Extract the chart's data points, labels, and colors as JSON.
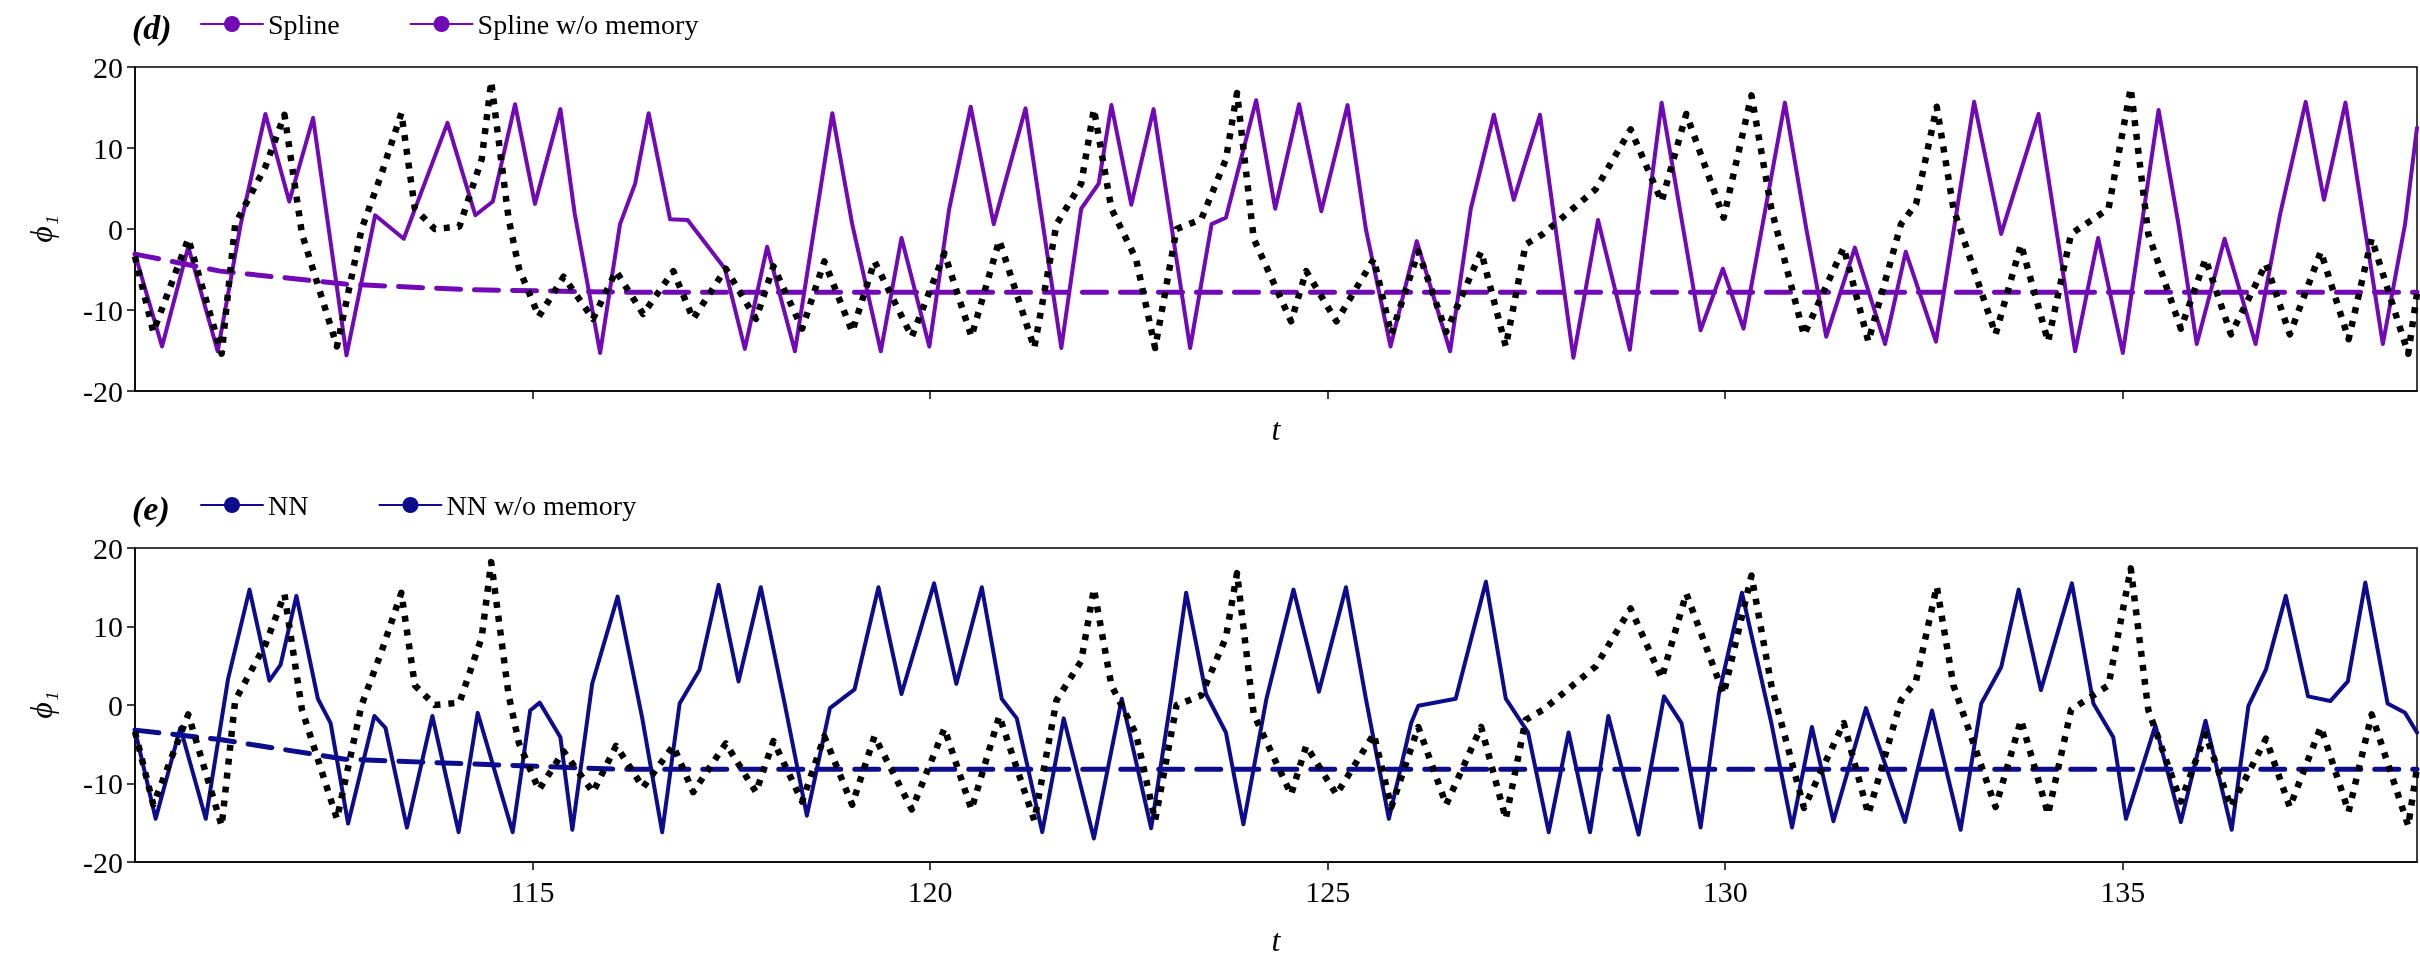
{
  "chart_data": [
    {
      "type": "line",
      "title": "(d)",
      "xlabel": "t",
      "ylabel": "ϕ₁",
      "xlim": [
        110,
        138.7
      ],
      "ylim": [
        -20,
        20
      ],
      "xticks": [
        115,
        120,
        125,
        130,
        135
      ],
      "yticks": [
        -20,
        -10,
        0,
        10,
        20
      ],
      "legend": "top left",
      "tick_labels": "y",
      "series": [
        {
          "name": "Spline",
          "color": "#7209b7",
          "line_style": "solid",
          "x": [
            110,
            110.34,
            110.67,
            111.04,
            111.33,
            111.64,
            111.94,
            112.24,
            112.66,
            113.02,
            113.38,
            113.93,
            114.28,
            114.5,
            114.78,
            115.03,
            115.35,
            115.53,
            115.85,
            116.1,
            116.29,
            116.46,
            116.73,
            116.95,
            117.42,
            117.67,
            117.95,
            118.3,
            118.77,
            119.02,
            119.38,
            119.64,
            119.99,
            120.24,
            120.51,
            120.8,
            121.2,
            121.65,
            121.9,
            122.12,
            122.28,
            122.53,
            122.81,
            123.27,
            123.54,
            123.72,
            124.1,
            124.34,
            124.64,
            124.92,
            125.25,
            125.48,
            125.79,
            126.12,
            126.54,
            126.8,
            127.09,
            127.34,
            127.67,
            128.09,
            128.4,
            128.8,
            129.2,
            129.69,
            129.97,
            130.23,
            130.75,
            131.02,
            131.27,
            131.63,
            132.01,
            132.27,
            132.65,
            133.13,
            133.47,
            133.94,
            134.4,
            134.69,
            135.0,
            135.45,
            135.7,
            135.93,
            136.28,
            136.67,
            136.98,
            137.3,
            137.53,
            137.8,
            138.27,
            138.55,
            138.7
          ],
          "values": [
            -3.1,
            -14.5,
            -2.2,
            -15.1,
            0.6,
            14.2,
            3.4,
            13.7,
            -15.6,
            1.7,
            -1.2,
            13.1,
            1.7,
            3.4,
            15.4,
            3.1,
            14.8,
            1.9,
            -15.3,
            0.6,
            5.6,
            14.3,
            1.2,
            1.1,
            -4.9,
            -14.8,
            -2.2,
            -15.1,
            14.3,
            0.6,
            -15.1,
            -1.1,
            -14.5,
            2.5,
            15.1,
            0.6,
            14.9,
            -14.7,
            2.5,
            5.6,
            15.3,
            3.0,
            14.8,
            -14.7,
            0.6,
            1.4,
            15.9,
            2.5,
            15.4,
            2.2,
            15.3,
            0.0,
            -14.5,
            -1.5,
            -15.1,
            2.5,
            14.1,
            3.6,
            14.1,
            -15.9,
            1.1,
            -14.9,
            15.6,
            -12.5,
            -4.9,
            -12.3,
            15.6,
            0.0,
            -13.3,
            -2.3,
            -14.2,
            -2.8,
            -13.9,
            15.7,
            -0.6,
            14.2,
            -15.1,
            -1.1,
            -15.3,
            14.7,
            0.6,
            -14.2,
            -1.2,
            -14.2,
            1.9,
            15.7,
            3.6,
            15.6,
            -14.2,
            0.6,
            12.5
          ]
        },
        {
          "name": "Spline w/o memory",
          "color": "#7209b7",
          "line_style": "dashed",
          "x": [
            110,
            111.07,
            112.64,
            114.2,
            116.1,
            138.7
          ],
          "values": [
            -3.1,
            -5.2,
            -6.8,
            -7.5,
            -7.8,
            -7.8
          ]
        },
        {
          "color": "#000000",
          "line_style": "dotted",
          "x": [
            110,
            110.23,
            110.67,
            111.09,
            111.26,
            111.64,
            111.88,
            112.1,
            112.54,
            112.85,
            113.1,
            113.35,
            113.52,
            113.77,
            114.08,
            114.36,
            114.48,
            114.7,
            114.83,
            115.08,
            115.39,
            115.76,
            116.05,
            116.39,
            116.77,
            117.02,
            117.43,
            117.81,
            118.03,
            118.39,
            118.67,
            119.02,
            119.3,
            119.77,
            120.18,
            120.52,
            120.87,
            121.31,
            121.59,
            121.9,
            122.06,
            122.28,
            122.59,
            122.83,
            123.1,
            123.41,
            123.72,
            123.86,
            124.07,
            124.54,
            124.73,
            125.11,
            125.58,
            125.8,
            126.14,
            126.49,
            126.93,
            127.24,
            127.49,
            127.71,
            128.37,
            128.81,
            129.2,
            129.51,
            129.98,
            130.33,
            130.58,
            130.99,
            131.49,
            131.8,
            132.21,
            132.4,
            132.66,
            132.87,
            133.4,
            133.72,
            134.06,
            134.35,
            134.82,
            135.1,
            135.32,
            135.73,
            136.04,
            136.36,
            136.8,
            137.1,
            137.49,
            137.84,
            138.13,
            138.59,
            138.7
          ],
          "values": [
            -3.4,
            -12.7,
            -1.2,
            -15.4,
            0.6,
            7.7,
            14.1,
            -0.6,
            -14.5,
            0.0,
            6.8,
            14.3,
            2.5,
            0.0,
            0.3,
            8.6,
            18.2,
            1.2,
            -4.9,
            -10.8,
            -5.9,
            -11.1,
            -5.2,
            -10.5,
            -5.2,
            -11.1,
            -4.9,
            -11.1,
            -4.6,
            -12.3,
            -4.0,
            -12.7,
            -4.0,
            -13.3,
            -3.0,
            -13.3,
            -1.4,
            -14.7,
            0.6,
            5.6,
            14.8,
            2.5,
            -3.7,
            -14.7,
            0.0,
            1.2,
            8.6,
            16.8,
            -1.2,
            -11.4,
            -5.2,
            -11.4,
            -3.7,
            -13.0,
            -2.8,
            -12.7,
            -2.8,
            -14.5,
            -1.9,
            -0.6,
            4.9,
            12.3,
            3.4,
            14.2,
            1.4,
            16.5,
            2.5,
            -13.1,
            -2.3,
            -13.9,
            0.6,
            3.1,
            15.1,
            2.5,
            -13.0,
            -1.9,
            -13.9,
            -0.6,
            2.5,
            17.4,
            -0.6,
            -12.3,
            -3.7,
            -13.0,
            -4.3,
            -13.0,
            -2.8,
            -13.6,
            -1.2,
            -15.4,
            -8.0
          ]
        }
      ]
    },
    {
      "type": "line",
      "title": "(e)",
      "xlabel": "t",
      "ylabel": "ϕ₁",
      "xlim": [
        110,
        138.7
      ],
      "ylim": [
        -20,
        20
      ],
      "xticks": [
        115,
        120,
        125,
        130,
        135
      ],
      "yticks": [
        -20,
        -10,
        0,
        10,
        20
      ],
      "legend": "top left",
      "series": [
        {
          "name": "NN",
          "color": "#0c0c8c",
          "line_style": "solid",
          "x": [
            110,
            110.26,
            110.57,
            110.89,
            111.17,
            111.44,
            111.69,
            111.83,
            112.03,
            112.3,
            112.46,
            112.68,
            113.01,
            113.15,
            113.42,
            113.74,
            114.07,
            114.31,
            114.75,
            114.97,
            115.09,
            115.35,
            115.5,
            115.75,
            116.07,
            116.38,
            116.63,
            116.85,
            117.1,
            117.34,
            117.59,
            117.87,
            118.17,
            118.45,
            118.74,
            119.05,
            119.35,
            119.64,
            120.05,
            120.33,
            120.65,
            120.9,
            121.09,
            121.41,
            121.68,
            122.06,
            122.41,
            122.78,
            123.03,
            123.22,
            123.47,
            123.72,
            123.94,
            124.23,
            124.57,
            124.89,
            125.23,
            125.48,
            125.77,
            126.05,
            126.14,
            126.61,
            126.99,
            127.24,
            127.52,
            127.78,
            128.03,
            128.3,
            128.53,
            128.91,
            129.23,
            129.45,
            129.69,
            129.92,
            130.21,
            130.58,
            130.84,
            131.09,
            131.36,
            131.77,
            132.26,
            132.6,
            132.96,
            133.22,
            133.47,
            133.69,
            133.97,
            134.36,
            134.63,
            134.88,
            135.04,
            135.41,
            135.73,
            136.04,
            136.37,
            136.58,
            136.8,
            137.05,
            137.33,
            137.61,
            137.83,
            138.05,
            138.33,
            138.55,
            138.7
          ],
          "values": [
            -3.2,
            -14.5,
            -2.9,
            -14.5,
            3.3,
            14.7,
            3.1,
            5.1,
            13.9,
            0.8,
            -2.3,
            -15.1,
            -1.4,
            -2.9,
            -15.6,
            -1.4,
            -16.2,
            -1.0,
            -16.2,
            -0.7,
            0.3,
            -4.1,
            -15.9,
            2.7,
            13.8,
            -1.7,
            -16.2,
            0.2,
            4.5,
            15.3,
            3.0,
            15.0,
            0.2,
            -14.1,
            -0.4,
            2.0,
            15.0,
            1.4,
            15.5,
            2.7,
            15.0,
            0.8,
            -1.7,
            -16.2,
            -1.7,
            -17.0,
            0.8,
            -15.7,
            0.8,
            14.3,
            1.4,
            -3.5,
            -15.2,
            0.8,
            14.7,
            1.7,
            15.0,
            0.8,
            -14.5,
            -2.3,
            -0.1,
            0.8,
            15.7,
            0.8,
            -3.5,
            -16.2,
            -3.5,
            -16.2,
            -1.4,
            -16.5,
            1.1,
            -2.3,
            -15.6,
            1.4,
            14.3,
            -2.3,
            -15.6,
            -2.8,
            -14.8,
            -0.4,
            -14.9,
            -0.7,
            -15.9,
            0.2,
            4.8,
            14.7,
            1.9,
            15.5,
            0.2,
            -4.1,
            -14.5,
            -2.6,
            -14.9,
            -2.0,
            -15.9,
            -0.1,
            4.5,
            13.9,
            1.1,
            0.5,
            3.0,
            15.6,
            0.2,
            -1.0,
            -3.5
          ]
        },
        {
          "name": "NN w/o memory",
          "color": "#0c0c8c",
          "line_style": "dashed",
          "x": [
            110,
            111.07,
            112.64,
            114.2,
            116.1,
            138.7
          ],
          "values": [
            -3.2,
            -4.4,
            -6.9,
            -7.5,
            -8.2,
            -8.2
          ]
        },
        {
          "color": "#000000",
          "line_style": "dotted",
          "x": [
            110,
            110.23,
            110.67,
            111.09,
            111.26,
            111.64,
            111.88,
            112.1,
            112.54,
            112.85,
            113.1,
            113.35,
            113.52,
            113.77,
            114.08,
            114.36,
            114.48,
            114.7,
            114.83,
            115.08,
            115.39,
            115.76,
            116.05,
            116.39,
            116.77,
            117.02,
            117.43,
            117.81,
            118.03,
            118.39,
            118.67,
            119.02,
            119.3,
            119.77,
            120.18,
            120.52,
            120.87,
            121.31,
            121.59,
            121.9,
            122.06,
            122.28,
            122.59,
            122.83,
            123.1,
            123.41,
            123.72,
            123.86,
            124.07,
            124.54,
            124.73,
            125.11,
            125.58,
            125.8,
            126.14,
            126.49,
            126.93,
            127.24,
            127.49,
            127.71,
            128.37,
            128.81,
            129.2,
            129.51,
            129.98,
            130.33,
            130.58,
            130.99,
            131.49,
            131.8,
            132.21,
            132.4,
            132.66,
            132.87,
            133.4,
            133.72,
            134.06,
            134.35,
            134.82,
            135.1,
            135.32,
            135.73,
            136.04,
            136.36,
            136.8,
            137.1,
            137.49,
            137.84,
            138.13,
            138.59,
            138.7
          ],
          "values": [
            -3.4,
            -12.7,
            -1.2,
            -15.4,
            0.6,
            7.7,
            14.1,
            -0.6,
            -14.5,
            0.0,
            6.8,
            14.3,
            2.5,
            0.0,
            0.3,
            8.6,
            18.2,
            1.2,
            -4.9,
            -10.8,
            -5.9,
            -11.1,
            -5.2,
            -10.5,
            -5.2,
            -11.1,
            -4.9,
            -11.1,
            -4.6,
            -12.3,
            -4.0,
            -12.7,
            -4.0,
            -13.3,
            -3.0,
            -13.3,
            -1.4,
            -14.7,
            0.6,
            5.6,
            14.8,
            2.5,
            -3.7,
            -14.7,
            0.0,
            1.2,
            8.6,
            16.8,
            -1.2,
            -11.4,
            -5.2,
            -11.4,
            -3.7,
            -13.0,
            -2.8,
            -12.7,
            -2.8,
            -14.5,
            -1.9,
            -0.6,
            4.9,
            12.3,
            3.4,
            14.2,
            1.4,
            16.5,
            2.5,
            -13.1,
            -2.3,
            -13.9,
            0.6,
            3.1,
            15.1,
            2.5,
            -13.0,
            -1.9,
            -13.9,
            -0.6,
            2.5,
            17.4,
            -0.6,
            -12.3,
            -3.7,
            -13.0,
            -4.3,
            -13.0,
            -2.8,
            -13.6,
            -1.2,
            -15.4,
            -8.0
          ]
        }
      ]
    }
  ]
}
